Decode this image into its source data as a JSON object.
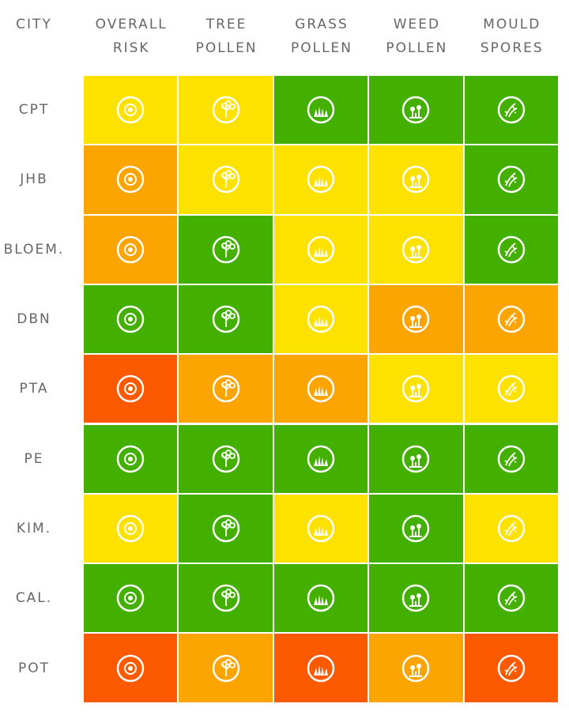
{
  "header": [
    "CITY",
    "OVERALL\nRISK",
    "TREE\nPOLLEN",
    "GRASS\nPOLLEN",
    "WEED\nPOLLEN",
    "MOULD\nSPORES"
  ],
  "rows": [
    {
      "city": "CPT",
      "colors": [
        "#fde200",
        "#fde200",
        "#43b000",
        "#43b000",
        "#43b000"
      ]
    },
    {
      "city": "JHB",
      "colors": [
        "#fca400",
        "#fde200",
        "#fde200",
        "#fde200",
        "#43b000"
      ]
    },
    {
      "city": "BLOEM.",
      "colors": [
        "#fca400",
        "#43b000",
        "#fde200",
        "#fde200",
        "#43b000"
      ]
    },
    {
      "city": "DBN",
      "colors": [
        "#43b000",
        "#43b000",
        "#fde200",
        "#fca400",
        "#fca400"
      ]
    },
    {
      "city": "PTA",
      "colors": [
        "#fd5a00",
        "#fca400",
        "#fca400",
        "#fde200",
        "#fde200"
      ]
    },
    {
      "city": "PE",
      "colors": [
        "#43b000",
        "#43b000",
        "#43b000",
        "#43b000",
        "#43b000"
      ]
    },
    {
      "city": "KIM.",
      "colors": [
        "#fde200",
        "#43b000",
        "#fde200",
        "#43b000",
        "#fde200"
      ]
    },
    {
      "city": "CAL.",
      "colors": [
        "#43b000",
        "#43b000",
        "#43b000",
        "#43b000",
        "#43b000"
      ]
    },
    {
      "city": "POT",
      "colors": [
        "#fd5a00",
        "#fca400",
        "#fd5a00",
        "#fca400",
        "#fd5a00"
      ]
    }
  ]
}
